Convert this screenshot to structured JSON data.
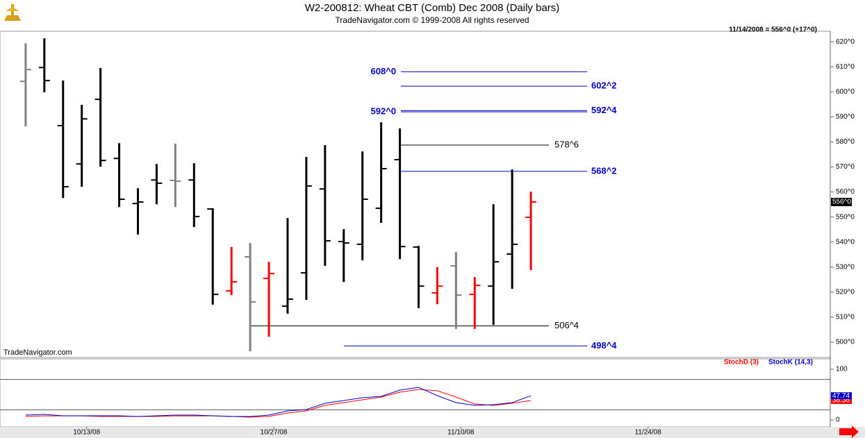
{
  "chart_data": [
    {
      "type": "ohlc",
      "title": "W2-200812:  Wheat CBT (Comb) Dec 2008  (Daily bars)",
      "subtitle": "TradeNavigator.com © 1999-2008 All rights reserved",
      "annotation": "11/14/2008 = 556^0 (+17^0)",
      "watermark": "TradeNavigator.com",
      "open": [
        604.2,
        609.7,
        586.5,
        571.2,
        597.0,
        573.4,
        555.4,
        564.8,
        564.6,
        564.8,
        553.2,
        520.5,
        534.1,
        525.5,
        514.4,
        527.7,
        561.2,
        540.2,
        539.1,
        553.5,
        572.9,
        538.0,
        519.7,
        530.5,
        519.1,
        522.4,
        535.2,
        549.9
      ],
      "high": [
        619.4,
        621.4,
        604.5,
        594.8,
        609.5,
        579.5,
        561.5,
        571.2,
        579.3,
        571.5,
        553.5,
        538.0,
        539.6,
        532.1,
        549.6,
        574.0,
        578.7,
        545.2,
        576.2,
        587.8,
        585.4,
        538.5,
        530.0,
        536.0,
        526.0,
        555.1,
        569.0,
        560.1
      ],
      "low": [
        586.2,
        599.8,
        557.6,
        562.1,
        570.1,
        554.0,
        543.0,
        555.1,
        554.0,
        546.0,
        515.0,
        518.8,
        496.4,
        502.2,
        511.4,
        516.9,
        530.5,
        524.1,
        532.7,
        547.7,
        533.2,
        513.6,
        515.2,
        505.3,
        505.3,
        506.9,
        521.3,
        528.8
      ],
      "close": [
        608.9,
        604.5,
        562.1,
        589.2,
        572.6,
        557.1,
        556.0,
        563.5,
        564.3,
        550.2,
        519.1,
        524.1,
        516.1,
        527.4,
        517.2,
        562.4,
        540.5,
        539.6,
        557.1,
        569.3,
        538.2,
        522.4,
        522.4,
        518.8,
        522.7,
        532.1,
        539.1,
        556.0
      ],
      "colors": [
        "#808080",
        "#000000",
        "#000000",
        "#000000",
        "#000000",
        "#000000",
        "#000000",
        "#000000",
        "#808080",
        "#000000",
        "#000000",
        "#ff0000",
        "#808080",
        "#ff0000",
        "#000000",
        "#000000",
        "#000000",
        "#000000",
        "#000000",
        "#000000",
        "#000000",
        "#000000",
        "#ff0000",
        "#808080",
        "#ff0000",
        "#000000",
        "#000000",
        "#ff0000"
      ],
      "xlim": [
        -1.37,
        43
      ],
      "xticks": [
        {
          "value": 3,
          "label": "10/13/08"
        },
        {
          "value": 13,
          "label": "10/27/08"
        },
        {
          "value": 23,
          "label": "11/10/08"
        },
        {
          "value": 33,
          "label": "11/24/08"
        }
      ],
      "ylim": [
        493.9,
        624.2
      ],
      "yticks": [
        {
          "value": 500,
          "label": "500^0"
        },
        {
          "value": 510,
          "label": "510^0"
        },
        {
          "value": 520,
          "label": "520^0"
        },
        {
          "value": 530,
          "label": "530^0"
        },
        {
          "value": 540,
          "label": "540^0"
        },
        {
          "value": 550,
          "label": "550^0"
        },
        {
          "value": 560,
          "label": "560^0"
        },
        {
          "value": 570,
          "label": "570^0"
        },
        {
          "value": 580,
          "label": "580^0"
        },
        {
          "value": 590,
          "label": "590^0"
        },
        {
          "value": 600,
          "label": "600^0"
        },
        {
          "value": 610,
          "label": "610^0"
        },
        {
          "value": 620,
          "label": "620^0"
        }
      ],
      "last_value": {
        "value": 556,
        "label": "556^0"
      },
      "levels": [
        {
          "value": 608,
          "label": "608^0",
          "color": "#0000cc"
        },
        {
          "value": 602.25,
          "label": "602^2",
          "color": "#0000cc"
        },
        {
          "value": 592,
          "label": "592^0",
          "color": "#0000cc"
        },
        {
          "value": 592.5,
          "label": "592^4",
          "color": "#0000cc"
        },
        {
          "value": 578.75,
          "label": "578^6",
          "color": "#000000"
        },
        {
          "value": 568.25,
          "label": "568^2",
          "color": "#0000cc"
        },
        {
          "value": 506.5,
          "label": "506^4",
          "color": "#000000"
        },
        {
          "value": 498.5,
          "label": "498^4",
          "color": "#0000cc"
        }
      ]
    },
    {
      "type": "line",
      "ylim": [
        -13.7,
        120.5
      ],
      "yticks": [
        0,
        100
      ],
      "levels": [
        20,
        80
      ],
      "series": [
        {
          "name": "StochD (3)",
          "color": "#ff0000",
          "values": [
            7,
            8,
            8,
            8,
            7,
            7,
            7,
            7,
            8,
            8,
            8,
            7,
            5.5,
            7,
            13.7,
            17.8,
            28.8,
            34.2,
            39.7,
            45.2,
            54.8,
            60.3,
            57.5,
            45.2,
            31.5,
            28.8,
            32.9,
            38.36
          ],
          "last_label": "38.36"
        },
        {
          "name": "StochK (14,3)",
          "color": "#0000cc",
          "values": [
            9.6,
            11,
            8.2,
            8.2,
            8.2,
            8.2,
            6.8,
            8.2,
            9.6,
            9.6,
            8.2,
            6.8,
            6.8,
            9.6,
            17.8,
            20.5,
            32.9,
            38.4,
            43.8,
            46.6,
            58.9,
            64.4,
            47.9,
            34.2,
            28.8,
            30.1,
            34.2,
            47.74
          ],
          "last_label": "47.74"
        }
      ]
    }
  ]
}
